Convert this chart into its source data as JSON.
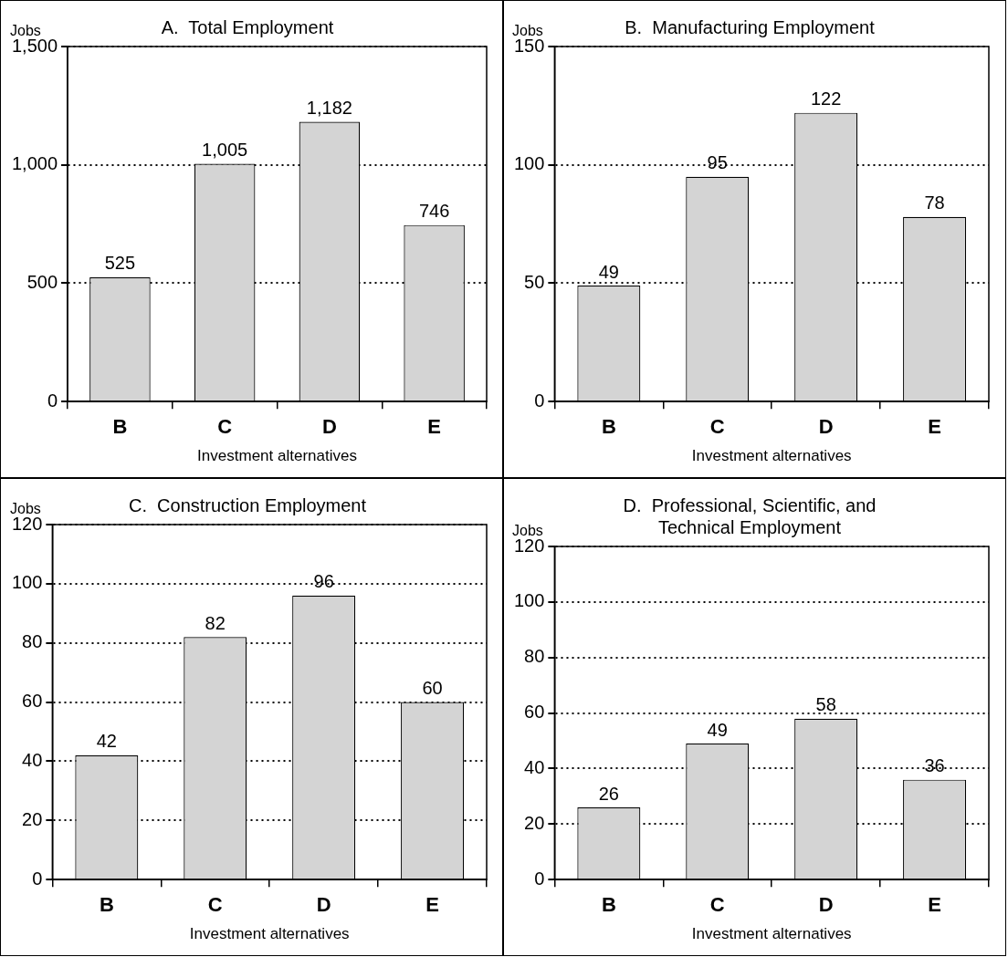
{
  "chart_data": [
    {
      "type": "bar",
      "title": "A.  Total Employment",
      "ylabel": "Jobs",
      "xlabel": "Investment alternatives",
      "categories": [
        "B",
        "C",
        "D",
        "E"
      ],
      "values": [
        525,
        1005,
        1182,
        746
      ],
      "value_labels": [
        "525",
        "1,005",
        "1,182",
        "746"
      ],
      "color": "#d4d4d4",
      "ylim": [
        0,
        1500
      ],
      "yticks": [
        0,
        {
          "value": 500,
          "label": "500"
        },
        {
          "value": 1000,
          "label": "1,000"
        },
        {
          "value": 1500,
          "label": "1,500"
        }
      ],
      "grid": "y",
      "legend": false
    },
    {
      "type": "bar",
      "title": "B.  Manufacturing Employment",
      "ylabel": "Jobs",
      "xlabel": "Investment alternatives",
      "categories": [
        "B",
        "C",
        "D",
        "E"
      ],
      "values": [
        49,
        95,
        122,
        78
      ],
      "value_labels": [
        "49",
        "95",
        "122",
        "78"
      ],
      "color": "#d4d4d4",
      "ylim": [
        0,
        150
      ],
      "yticks": [
        0,
        50,
        100,
        150
      ],
      "grid": "y",
      "legend": false
    },
    {
      "type": "bar",
      "title": "C.  Construction Employment",
      "ylabel": "Jobs",
      "xlabel": "Investment alternatives",
      "categories": [
        "B",
        "C",
        "D",
        "E"
      ],
      "values": [
        42,
        82,
        96,
        60
      ],
      "value_labels": [
        "42",
        "82",
        "96",
        "60"
      ],
      "color": "#d4d4d4",
      "ylim": [
        0,
        120
      ],
      "yticks": [
        0,
        20,
        40,
        60,
        80,
        100,
        120
      ],
      "grid": "y",
      "legend": false
    },
    {
      "type": "bar",
      "title": "D.  Professional, Scientific, and\nTechnical Employment",
      "ylabel": "Jobs",
      "xlabel": "Investment alternatives",
      "categories": [
        "B",
        "C",
        "D",
        "E"
      ],
      "values": [
        26,
        49,
        58,
        36
      ],
      "value_labels": [
        "26",
        "49",
        "58",
        "36"
      ],
      "color": "#d4d4d4",
      "ylim": [
        0,
        120
      ],
      "yticks": [
        0,
        20,
        40,
        60,
        80,
        100,
        120
      ],
      "grid": "y",
      "legend": false
    }
  ]
}
